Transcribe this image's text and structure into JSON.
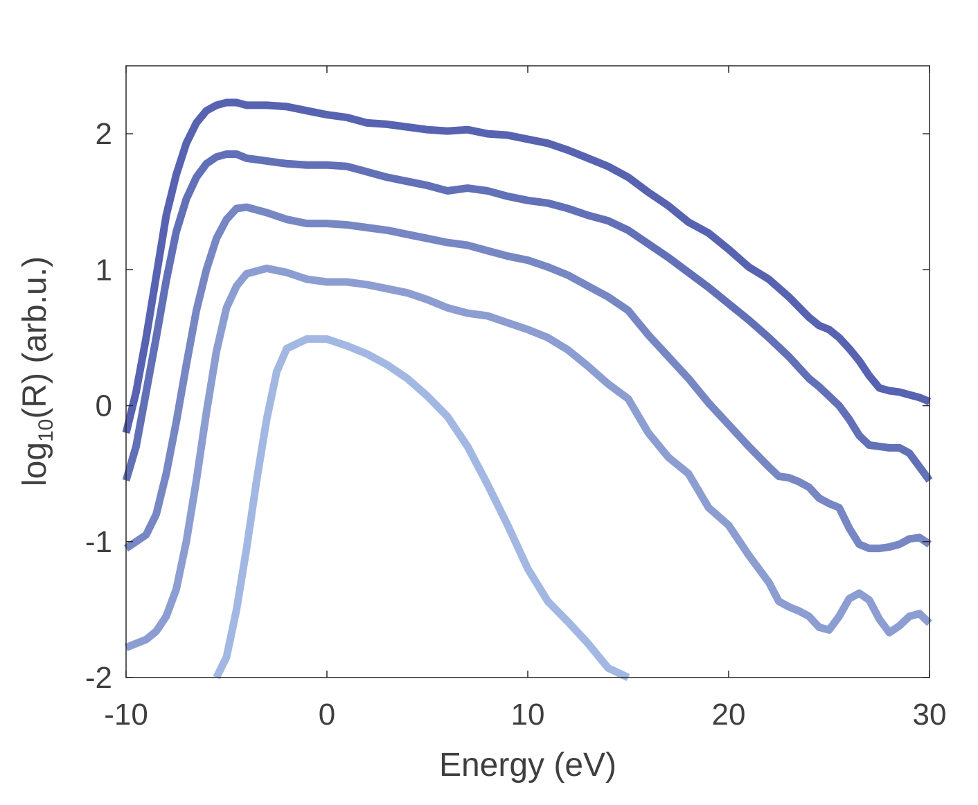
{
  "chart_data": {
    "type": "line",
    "title": "",
    "xlabel": "Energy (eV)",
    "ylabel": {
      "prefix": "log",
      "subscript": "10",
      "suffix": "(R) (arb.u.)"
    },
    "xlim": [
      -10,
      30
    ],
    "ylim": [
      -2,
      2.5
    ],
    "xticks": [
      {
        "value": -10,
        "label": "-10"
      },
      {
        "value": 0,
        "label": "0"
      },
      {
        "value": 10,
        "label": "10"
      },
      {
        "value": 20,
        "label": "20"
      },
      {
        "value": 30,
        "label": "30"
      }
    ],
    "yticks": [
      {
        "value": -2,
        "label": "-2"
      },
      {
        "value": -1,
        "label": "-1"
      },
      {
        "value": 0,
        "label": "0"
      },
      {
        "value": 1,
        "label": "1"
      },
      {
        "value": 2,
        "label": "2"
      }
    ],
    "grid": false,
    "series": [
      {
        "name": "curve-1",
        "color": "#5763b1",
        "points": [
          [
            -10,
            -0.2
          ],
          [
            -9.5,
            0.1
          ],
          [
            -9,
            0.5
          ],
          [
            -8.5,
            0.95
          ],
          [
            -8,
            1.4
          ],
          [
            -7.5,
            1.7
          ],
          [
            -7,
            1.93
          ],
          [
            -6.5,
            2.08
          ],
          [
            -6,
            2.17
          ],
          [
            -5.5,
            2.21
          ],
          [
            -5,
            2.23
          ],
          [
            -4.5,
            2.23
          ],
          [
            -4,
            2.21
          ],
          [
            -3,
            2.21
          ],
          [
            -2,
            2.2
          ],
          [
            -1,
            2.17
          ],
          [
            0,
            2.14
          ],
          [
            1,
            2.12
          ],
          [
            2,
            2.08
          ],
          [
            3,
            2.07
          ],
          [
            4,
            2.05
          ],
          [
            5,
            2.03
          ],
          [
            6,
            2.02
          ],
          [
            7,
            2.03
          ],
          [
            8,
            2.0
          ],
          [
            9,
            1.99
          ],
          [
            10,
            1.96
          ],
          [
            11,
            1.93
          ],
          [
            12,
            1.88
          ],
          [
            13,
            1.82
          ],
          [
            14,
            1.76
          ],
          [
            15,
            1.68
          ],
          [
            16,
            1.57
          ],
          [
            17,
            1.47
          ],
          [
            18,
            1.35
          ],
          [
            19,
            1.27
          ],
          [
            20,
            1.15
          ],
          [
            21,
            1.02
          ],
          [
            22,
            0.93
          ],
          [
            23,
            0.8
          ],
          [
            24,
            0.65
          ],
          [
            24.5,
            0.59
          ],
          [
            25,
            0.56
          ],
          [
            25.5,
            0.5
          ],
          [
            26,
            0.42
          ],
          [
            26.5,
            0.33
          ],
          [
            27,
            0.22
          ],
          [
            27.5,
            0.13
          ],
          [
            28,
            0.11
          ],
          [
            28.5,
            0.1
          ],
          [
            29,
            0.08
          ],
          [
            29.5,
            0.06
          ],
          [
            30,
            0.03
          ]
        ]
      },
      {
        "name": "curve-2",
        "color": "#6270b7",
        "points": [
          [
            -10,
            -0.55
          ],
          [
            -9.5,
            -0.3
          ],
          [
            -9,
            0.1
          ],
          [
            -8.5,
            0.5
          ],
          [
            -8,
            0.92
          ],
          [
            -7.5,
            1.28
          ],
          [
            -7,
            1.52
          ],
          [
            -6.5,
            1.68
          ],
          [
            -6,
            1.78
          ],
          [
            -5.5,
            1.83
          ],
          [
            -5,
            1.85
          ],
          [
            -4.5,
            1.85
          ],
          [
            -4,
            1.82
          ],
          [
            -3,
            1.8
          ],
          [
            -2,
            1.78
          ],
          [
            -1,
            1.77
          ],
          [
            0,
            1.77
          ],
          [
            1,
            1.76
          ],
          [
            2,
            1.72
          ],
          [
            3,
            1.68
          ],
          [
            4,
            1.65
          ],
          [
            5,
            1.62
          ],
          [
            6,
            1.58
          ],
          [
            7,
            1.6
          ],
          [
            8,
            1.58
          ],
          [
            9,
            1.54
          ],
          [
            10,
            1.51
          ],
          [
            11,
            1.49
          ],
          [
            12,
            1.45
          ],
          [
            13,
            1.4
          ],
          [
            14,
            1.36
          ],
          [
            15,
            1.29
          ],
          [
            16,
            1.19
          ],
          [
            17,
            1.09
          ],
          [
            18,
            0.98
          ],
          [
            19,
            0.87
          ],
          [
            20,
            0.75
          ],
          [
            21,
            0.63
          ],
          [
            22,
            0.5
          ],
          [
            23,
            0.36
          ],
          [
            24,
            0.2
          ],
          [
            24.5,
            0.14
          ],
          [
            25,
            0.07
          ],
          [
            25.5,
            0.0
          ],
          [
            26,
            -0.1
          ],
          [
            26.5,
            -0.22
          ],
          [
            27,
            -0.29
          ],
          [
            27.5,
            -0.3
          ],
          [
            28,
            -0.31
          ],
          [
            28.5,
            -0.31
          ],
          [
            29,
            -0.35
          ],
          [
            29.5,
            -0.45
          ],
          [
            30,
            -0.55
          ]
        ]
      },
      {
        "name": "curve-3",
        "color": "#7787c4",
        "points": [
          [
            -10,
            -1.05
          ],
          [
            -9.5,
            -1.0
          ],
          [
            -9,
            -0.95
          ],
          [
            -8.5,
            -0.8
          ],
          [
            -8,
            -0.5
          ],
          [
            -7.5,
            -0.12
          ],
          [
            -7,
            0.3
          ],
          [
            -6.5,
            0.7
          ],
          [
            -6,
            1.0
          ],
          [
            -5.5,
            1.23
          ],
          [
            -5,
            1.37
          ],
          [
            -4.5,
            1.45
          ],
          [
            -4,
            1.46
          ],
          [
            -3,
            1.42
          ],
          [
            -2,
            1.37
          ],
          [
            -1,
            1.34
          ],
          [
            0,
            1.34
          ],
          [
            1,
            1.33
          ],
          [
            2,
            1.31
          ],
          [
            3,
            1.29
          ],
          [
            4,
            1.26
          ],
          [
            5,
            1.23
          ],
          [
            6,
            1.2
          ],
          [
            7,
            1.18
          ],
          [
            8,
            1.14
          ],
          [
            9,
            1.1
          ],
          [
            10,
            1.07
          ],
          [
            11,
            1.02
          ],
          [
            12,
            0.96
          ],
          [
            13,
            0.88
          ],
          [
            14,
            0.8
          ],
          [
            15,
            0.7
          ],
          [
            16,
            0.52
          ],
          [
            17,
            0.36
          ],
          [
            18,
            0.2
          ],
          [
            19,
            0.02
          ],
          [
            20,
            -0.14
          ],
          [
            21,
            -0.3
          ],
          [
            22,
            -0.45
          ],
          [
            22.5,
            -0.52
          ],
          [
            23,
            -0.53
          ],
          [
            23.5,
            -0.56
          ],
          [
            24,
            -0.6
          ],
          [
            24.5,
            -0.68
          ],
          [
            25,
            -0.72
          ],
          [
            25.5,
            -0.75
          ],
          [
            26,
            -0.9
          ],
          [
            26.5,
            -1.02
          ],
          [
            27,
            -1.05
          ],
          [
            27.5,
            -1.05
          ],
          [
            28,
            -1.04
          ],
          [
            28.5,
            -1.02
          ],
          [
            29,
            -0.98
          ],
          [
            29.5,
            -0.97
          ],
          [
            30,
            -1.02
          ]
        ]
      },
      {
        "name": "curve-4",
        "color": "#8c9dd1",
        "points": [
          [
            -10,
            -1.78
          ],
          [
            -9.5,
            -1.75
          ],
          [
            -9,
            -1.72
          ],
          [
            -8.5,
            -1.66
          ],
          [
            -8,
            -1.55
          ],
          [
            -7.5,
            -1.35
          ],
          [
            -7,
            -1.0
          ],
          [
            -6.5,
            -0.55
          ],
          [
            -6,
            -0.05
          ],
          [
            -5.5,
            0.4
          ],
          [
            -5,
            0.72
          ],
          [
            -4.5,
            0.88
          ],
          [
            -4,
            0.97
          ],
          [
            -3,
            1.01
          ],
          [
            -2,
            0.98
          ],
          [
            -1,
            0.93
          ],
          [
            0,
            0.91
          ],
          [
            1,
            0.91
          ],
          [
            2,
            0.89
          ],
          [
            3,
            0.86
          ],
          [
            4,
            0.83
          ],
          [
            5,
            0.78
          ],
          [
            6,
            0.72
          ],
          [
            7,
            0.68
          ],
          [
            8,
            0.66
          ],
          [
            9,
            0.61
          ],
          [
            10,
            0.56
          ],
          [
            11,
            0.5
          ],
          [
            12,
            0.41
          ],
          [
            13,
            0.29
          ],
          [
            14,
            0.16
          ],
          [
            15,
            0.05
          ],
          [
            16,
            -0.2
          ],
          [
            17,
            -0.38
          ],
          [
            18,
            -0.5
          ],
          [
            19,
            -0.75
          ],
          [
            20,
            -0.88
          ],
          [
            21,
            -1.1
          ],
          [
            22,
            -1.3
          ],
          [
            22.5,
            -1.44
          ],
          [
            23,
            -1.48
          ],
          [
            23.5,
            -1.51
          ],
          [
            24,
            -1.55
          ],
          [
            24.5,
            -1.63
          ],
          [
            25,
            -1.65
          ],
          [
            25.5,
            -1.55
          ],
          [
            26,
            -1.42
          ],
          [
            26.5,
            -1.38
          ],
          [
            27,
            -1.43
          ],
          [
            27.5,
            -1.57
          ],
          [
            28,
            -1.67
          ],
          [
            28.5,
            -1.62
          ],
          [
            29,
            -1.55
          ],
          [
            29.5,
            -1.53
          ],
          [
            30,
            -1.6
          ]
        ]
      },
      {
        "name": "curve-5",
        "color": "#a2b7e2",
        "points": [
          [
            -5.5,
            -2.0
          ],
          [
            -5,
            -1.85
          ],
          [
            -4.5,
            -1.5
          ],
          [
            -4,
            -1.05
          ],
          [
            -3.5,
            -0.55
          ],
          [
            -3,
            -0.1
          ],
          [
            -2.5,
            0.25
          ],
          [
            -2,
            0.42
          ],
          [
            -1,
            0.49
          ],
          [
            0,
            0.49
          ],
          [
            1,
            0.44
          ],
          [
            2,
            0.38
          ],
          [
            3,
            0.3
          ],
          [
            4,
            0.2
          ],
          [
            5,
            0.07
          ],
          [
            6,
            -0.08
          ],
          [
            7,
            -0.3
          ],
          [
            8,
            -0.58
          ],
          [
            9,
            -0.88
          ],
          [
            10,
            -1.2
          ],
          [
            11,
            -1.44
          ],
          [
            12,
            -1.59
          ],
          [
            13,
            -1.75
          ],
          [
            14,
            -1.93
          ],
          [
            15,
            -2.0
          ]
        ]
      }
    ]
  }
}
